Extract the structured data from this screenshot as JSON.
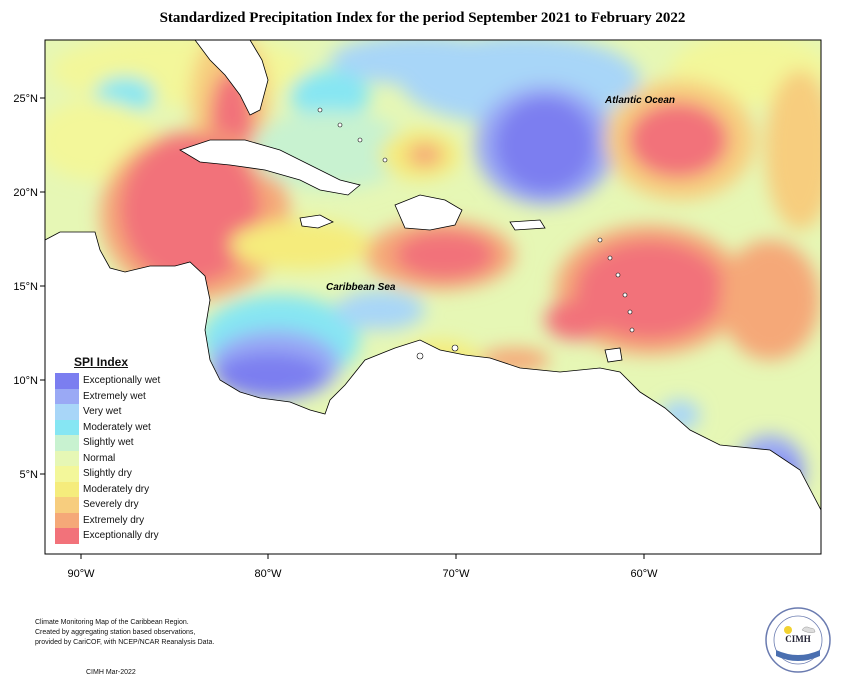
{
  "title": "Standardized Precipitation Index for the period September 2021 to February 2022",
  "map": {
    "lat_labels": [
      "25°N",
      "20°N",
      "15°N",
      "10°N",
      "5°N"
    ],
    "lon_labels": [
      "90°W",
      "80°W",
      "70°W",
      "60°W"
    ],
    "labels": {
      "caribbean_sea": "Caribbean Sea",
      "atlantic_ocean": "Atlantic Ocean"
    }
  },
  "legend": {
    "title": "SPI Index",
    "items": [
      {
        "label": "Exceptionally wet",
        "color": "#7b7ef0"
      },
      {
        "label": "Extremely wet",
        "color": "#9aa9f5"
      },
      {
        "label": "Very wet",
        "color": "#a8d6f8"
      },
      {
        "label": "Moderately wet",
        "color": "#86e6f3"
      },
      {
        "label": "Slightly wet",
        "color": "#c8f2d0"
      },
      {
        "label": "Normal",
        "color": "#e6f7b5"
      },
      {
        "label": "Slightly dry",
        "color": "#f3f79a"
      },
      {
        "label": "Moderately dry",
        "color": "#f5ec7c"
      },
      {
        "label": "Severely dry",
        "color": "#f7cd7e"
      },
      {
        "label": "Extremely dry",
        "color": "#f5a878"
      },
      {
        "label": "Exceptionally dry",
        "color": "#f2727a"
      }
    ]
  },
  "credits": {
    "line1": "Climate Monitoring Map of the Caribbean Region.",
    "line2": "Created by aggregating station based observations,",
    "line3": "provided by CariCOF, with NCEP/NCAR Reanalysis Data."
  },
  "footer": "CIMH Mar-2022",
  "logo": {
    "text": "CIMH"
  }
}
